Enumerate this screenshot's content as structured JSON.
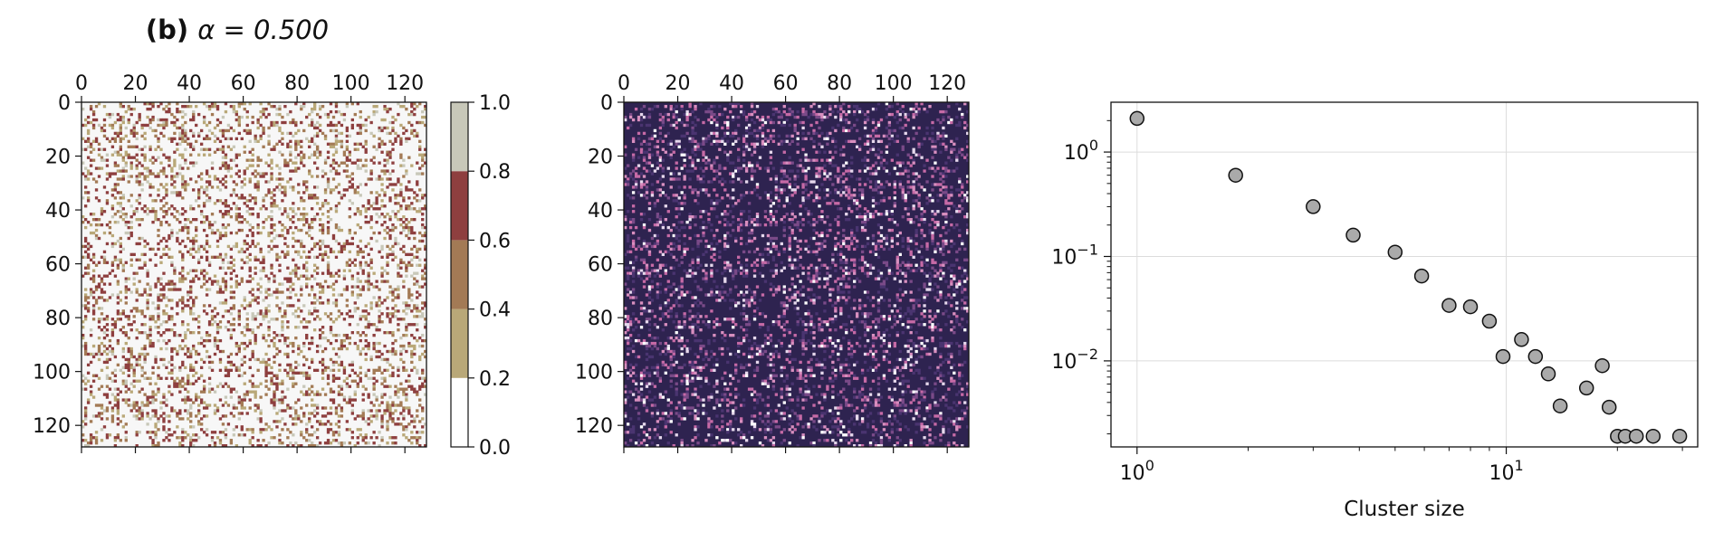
{
  "chart_data": [
    {
      "type": "heatmap",
      "title_bold": "(b)",
      "title_rest": "α = 0.500",
      "grid_size": 128,
      "xlim": [
        0,
        128
      ],
      "ylim": [
        128,
        0
      ],
      "xticks": [
        0,
        20,
        40,
        60,
        80,
        100,
        120
      ],
      "yticks": [
        0,
        20,
        40,
        60,
        80,
        100,
        120
      ],
      "xtick_position": "top",
      "colormap": [
        "#ffffff",
        "#b9a878",
        "#a37a55",
        "#8e3f3f",
        "#c8c8b9"
      ],
      "background_color": "#f7f7f7",
      "fill_fraction": 0.26,
      "colorbar": {
        "ticks": [
          0.0,
          0.2,
          0.4,
          0.6,
          0.8,
          1.0
        ],
        "tick_labels": [
          "0.0",
          "0.2",
          "0.4",
          "0.6",
          "0.8",
          "1.0"
        ],
        "bins": [
          {
            "from": 0.0,
            "to": 0.2,
            "color": "#ffffff"
          },
          {
            "from": 0.2,
            "to": 0.4,
            "color": "#b9a878"
          },
          {
            "from": 0.4,
            "to": 0.6,
            "color": "#a37a55"
          },
          {
            "from": 0.6,
            "to": 0.8,
            "color": "#8e3f3f"
          },
          {
            "from": 0.8,
            "to": 1.0,
            "color": "#c8c8b9"
          }
        ]
      }
    },
    {
      "type": "heatmap",
      "grid_size": 128,
      "xlim": [
        0,
        128
      ],
      "ylim": [
        128,
        0
      ],
      "xticks": [
        0,
        20,
        40,
        60,
        80,
        100,
        120
      ],
      "yticks": [
        0,
        20,
        40,
        60,
        80,
        100,
        120
      ],
      "xtick_position": "top",
      "background_color": "#2e2350",
      "colormap": [
        "#4a3470",
        "#7a4a88",
        "#c66aa6",
        "#d88fbf",
        "#e6d8ec",
        "#ffffff"
      ]
    },
    {
      "type": "scatter",
      "xlabel": "Cluster size",
      "xscale": "log",
      "yscale": "log",
      "xlim": [
        0.85,
        33
      ],
      "ylim": [
        0.0015,
        3.0
      ],
      "xticks": [
        1,
        10
      ],
      "xtick_labels": [
        {
          "base": "10",
          "exp": "0"
        },
        {
          "base": "10",
          "exp": "1"
        }
      ],
      "yticks": [
        0.01,
        0.1,
        1
      ],
      "ytick_labels": [
        {
          "base": "10",
          "exp": "−2"
        },
        {
          "base": "10",
          "exp": "−1"
        },
        {
          "base": "10",
          "exp": "0"
        }
      ],
      "grid": true,
      "marker_color": "#aaaaaa",
      "marker_edge": "#111111",
      "x": [
        1,
        1.85,
        3,
        3.85,
        5,
        5.9,
        7,
        8,
        9,
        9.8,
        11,
        12,
        13,
        14,
        16.5,
        18.2,
        19,
        20,
        21,
        22.5,
        25,
        29.5
      ],
      "y": [
        2.1,
        0.6,
        0.3,
        0.16,
        0.11,
        0.065,
        0.034,
        0.033,
        0.024,
        0.011,
        0.016,
        0.011,
        0.0075,
        0.0037,
        0.0055,
        0.009,
        0.0036,
        0.0019,
        0.0019,
        0.0019,
        0.0019,
        0.0019
      ]
    }
  ]
}
